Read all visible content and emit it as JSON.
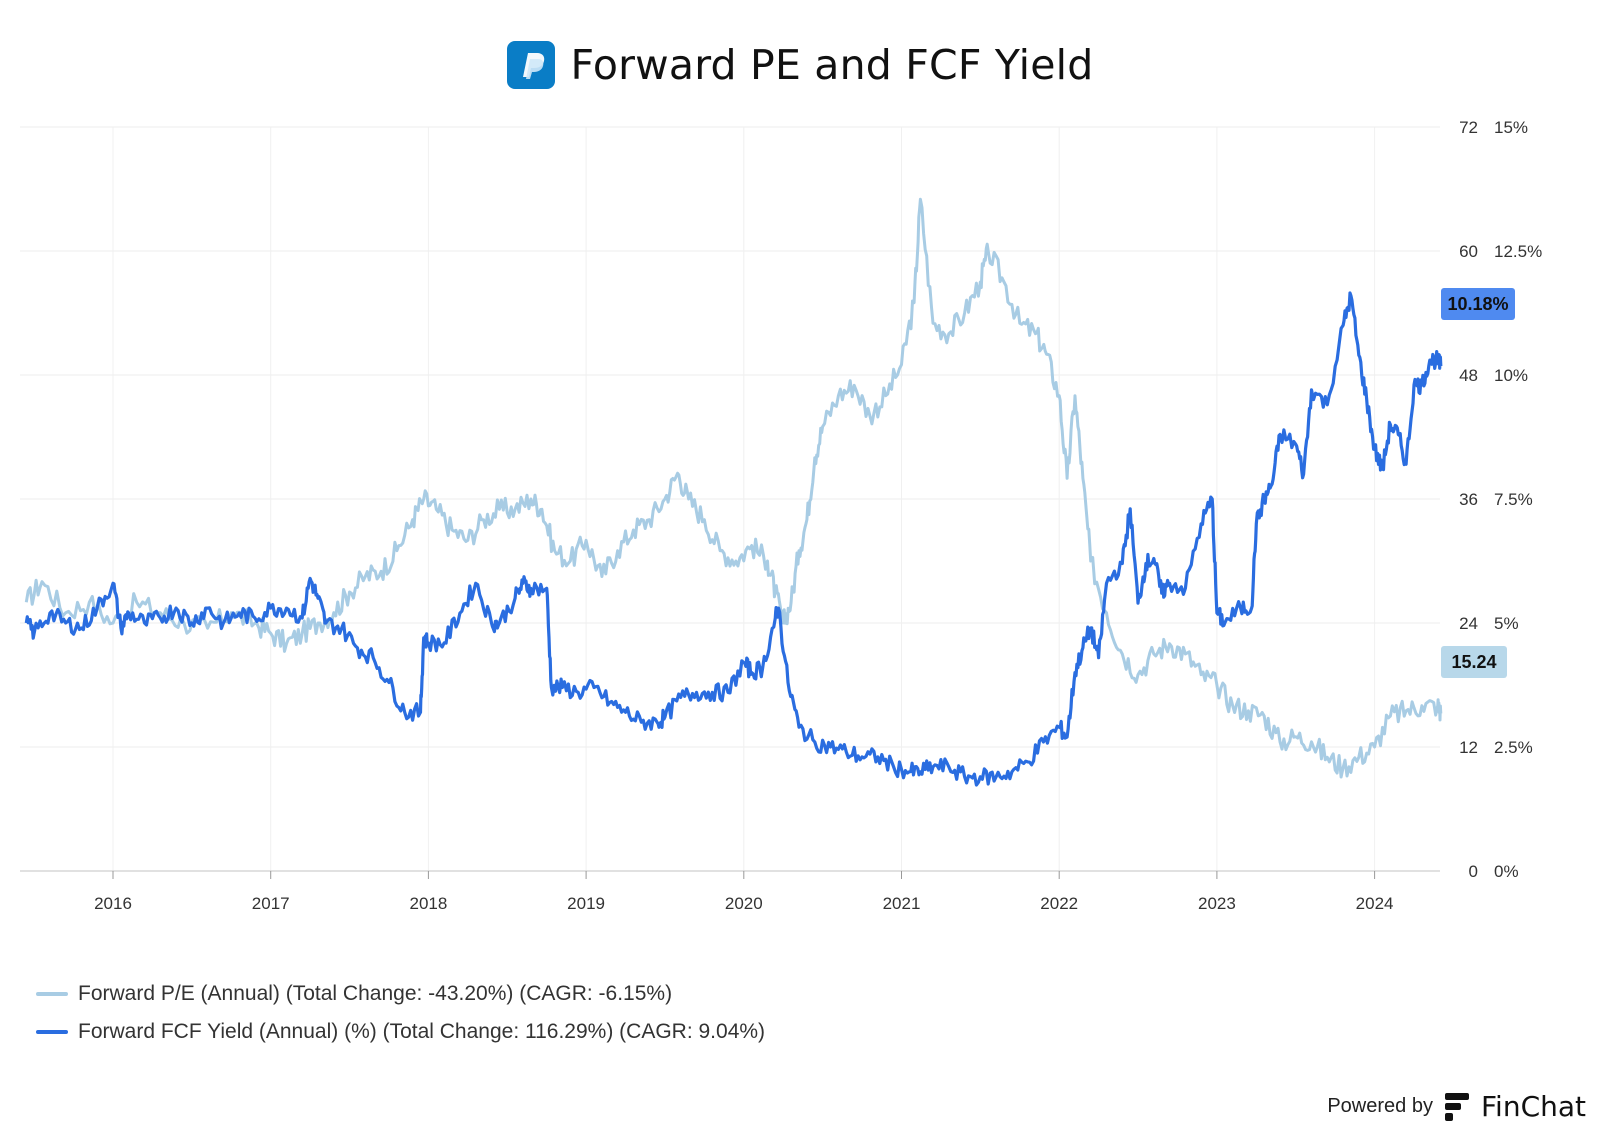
{
  "title": "Forward PE and FCF Yield",
  "logo_icon": "paypal-logo-icon",
  "colors": {
    "pe_series": "#a8cce4",
    "fcf_series": "#2a6de0",
    "pe_badge_bg": "#b8d8ea",
    "fcf_badge_bg": "#4f8af0",
    "grid": "#ececec",
    "logo_bg": "#0a7dc6"
  },
  "legend": {
    "pe_label": "Forward P/E (Annual) (Total Change: -43.20%) (CAGR: -6.15%)",
    "fcf_label": "Forward FCF Yield (Annual) (%) (Total Change: 116.29%) (CAGR: 9.04%)"
  },
  "badges": {
    "fcf_last": "10.18%",
    "pe_last": "15.24"
  },
  "footer": {
    "powered_by": "Powered by",
    "brand": "FinChat",
    "brand_icon": "finchat-logo-icon"
  },
  "chart_data": {
    "type": "line",
    "x_ticks": [
      "2016",
      "2017",
      "2018",
      "2019",
      "2020",
      "2021",
      "2022",
      "2023",
      "2024"
    ],
    "y_left_ticks": [
      "0",
      "12",
      "24",
      "36",
      "48",
      "60",
      "72"
    ],
    "y_right_ticks": [
      "0%",
      "2.5%",
      "5%",
      "7.5%",
      "10%",
      "12.5%",
      "15%"
    ],
    "y_left_range": [
      0,
      72
    ],
    "y_right_range": [
      0,
      15
    ],
    "x_range": [
      2015.42,
      2024.5
    ],
    "grid": true,
    "legend_position": "bottom-left",
    "series": [
      {
        "name": "Forward P/E (Annual) (Total Change: -43.20%) (CAGR: -6.15%)",
        "axis": "left",
        "x": [
          2015.45,
          2015.55,
          2015.7,
          2015.85,
          2016.0,
          2016.15,
          2016.3,
          2016.45,
          2016.6,
          2016.75,
          2016.9,
          2017.0,
          2017.1,
          2017.2,
          2017.3,
          2017.4,
          2017.5,
          2017.6,
          2017.7,
          2017.8,
          2017.9,
          2017.97,
          2018.05,
          2018.15,
          2018.25,
          2018.35,
          2018.45,
          2018.55,
          2018.65,
          2018.72,
          2018.8,
          2018.9,
          2019.0,
          2019.1,
          2019.2,
          2019.3,
          2019.4,
          2019.5,
          2019.58,
          2019.65,
          2019.75,
          2019.85,
          2019.95,
          2020.05,
          2020.15,
          2020.2,
          2020.25,
          2020.3,
          2020.35,
          2020.4,
          2020.45,
          2020.5,
          2020.6,
          2020.7,
          2020.8,
          2020.9,
          2021.0,
          2021.08,
          2021.12,
          2021.2,
          2021.3,
          2021.4,
          2021.5,
          2021.55,
          2021.65,
          2021.75,
          2021.85,
          2021.92,
          2022.0,
          2022.05,
          2022.1,
          2022.15,
          2022.2,
          2022.3,
          2022.4,
          2022.5,
          2022.6,
          2022.7,
          2022.8,
          2022.9,
          2023.0,
          2023.1,
          2023.2,
          2023.3,
          2023.4,
          2023.5,
          2023.6,
          2023.7,
          2023.8,
          2023.9,
          2024.0,
          2024.1,
          2024.2,
          2024.3,
          2024.4,
          2024.42
        ],
        "y": [
          26,
          28,
          25,
          26,
          24,
          26,
          25,
          24,
          23.5,
          25,
          24,
          23,
          22,
          23,
          24,
          25,
          27,
          28.5,
          29,
          31,
          34,
          36,
          35,
          33,
          32,
          34,
          35,
          35,
          36,
          35,
          31,
          30,
          32,
          28.5,
          31,
          33,
          34,
          36,
          38.5,
          36,
          34,
          31,
          30,
          31.5,
          30,
          27,
          24,
          26,
          31,
          34,
          40,
          43,
          46,
          47,
          44,
          46,
          49,
          55,
          65,
          53,
          52,
          54,
          57,
          60,
          57,
          53,
          52,
          50,
          46,
          38,
          46,
          38,
          30,
          25,
          21,
          19,
          21,
          22,
          21,
          19,
          18,
          16,
          15.5,
          15,
          12.5,
          13,
          12.5,
          11,
          10,
          11,
          12,
          15,
          15.5,
          16,
          16,
          15.24
        ]
      },
      {
        "name": "Forward FCF Yield (Annual) (%) (Total Change: 116.29%) (CAGR: 9.04%)",
        "axis": "right",
        "x": [
          2015.45,
          2015.5,
          2015.6,
          2015.7,
          2015.8,
          2015.9,
          2016.0,
          2016.05,
          2016.1,
          2016.2,
          2016.3,
          2016.4,
          2016.5,
          2016.6,
          2016.7,
          2016.8,
          2016.9,
          2017.0,
          2017.1,
          2017.2,
          2017.25,
          2017.3,
          2017.35,
          2017.45,
          2017.55,
          2017.65,
          2017.75,
          2017.85,
          2017.95,
          2017.97,
          2018.0,
          2018.1,
          2018.2,
          2018.3,
          2018.4,
          2018.45,
          2018.55,
          2018.6,
          2018.65,
          2018.75,
          2018.78,
          2018.85,
          2018.95,
          2019.05,
          2019.15,
          2019.25,
          2019.35,
          2019.45,
          2019.5,
          2019.6,
          2019.7,
          2019.8,
          2019.9,
          2020.0,
          2020.05,
          2020.12,
          2020.2,
          2020.22,
          2020.28,
          2020.35,
          2020.45,
          2020.55,
          2020.65,
          2020.75,
          2020.85,
          2020.95,
          2021.05,
          2021.12,
          2021.2,
          2021.3,
          2021.4,
          2021.5,
          2021.6,
          2021.7,
          2021.8,
          2021.9,
          2022.0,
          2022.05,
          2022.1,
          2022.15,
          2022.2,
          2022.25,
          2022.3,
          2022.4,
          2022.45,
          2022.5,
          2022.55,
          2022.6,
          2022.65,
          2022.7,
          2022.8,
          2022.9,
          2022.97,
          2023.0,
          2023.05,
          2023.15,
          2023.22,
          2023.25,
          2023.3,
          2023.35,
          2023.4,
          2023.5,
          2023.55,
          2023.6,
          2023.7,
          2023.8,
          2023.85,
          2023.9,
          2023.95,
          2024.0,
          2024.05,
          2024.1,
          2024.15,
          2024.2,
          2024.25,
          2024.3,
          2024.35,
          2024.4,
          2024.42
        ],
        "y": [
          5,
          4.8,
          5.2,
          5.0,
          4.9,
          5.3,
          5.8,
          4.9,
          5.2,
          5.0,
          5.1,
          5.3,
          5.0,
          5.3,
          5.0,
          5.2,
          5.1,
          5.3,
          5.3,
          5.1,
          5.9,
          5.5,
          5.0,
          4.9,
          4.5,
          4.3,
          3.8,
          3.2,
          3.2,
          4.7,
          4.6,
          4.6,
          5.2,
          5.8,
          5.0,
          5.0,
          5.5,
          5.8,
          5.7,
          5.7,
          3.7,
          3.7,
          3.6,
          3.7,
          3.4,
          3.2,
          3.0,
          3.0,
          3.1,
          3.5,
          3.6,
          3.6,
          3.6,
          4.2,
          4.0,
          4.1,
          5.1,
          5.3,
          3.8,
          2.9,
          2.6,
          2.5,
          2.4,
          2.3,
          2.3,
          2.1,
          2.0,
          2.0,
          2.1,
          2.1,
          1.9,
          1.9,
          1.9,
          2.0,
          2.2,
          2.6,
          2.9,
          2.7,
          4.0,
          4.5,
          4.9,
          4.3,
          5.8,
          6.2,
          7.3,
          5.4,
          6.2,
          6.3,
          5.6,
          5.8,
          5.7,
          7.0,
          7.5,
          5.2,
          5.0,
          5.3,
          5.3,
          7.0,
          7.5,
          7.8,
          8.8,
          8.6,
          8.0,
          9.7,
          9.4,
          11.0,
          11.6,
          10.4,
          9.5,
          8.5,
          8.1,
          9.0,
          8.8,
          8.2,
          9.8,
          9.8,
          10.3,
          10.3,
          10.18
        ]
      }
    ]
  }
}
